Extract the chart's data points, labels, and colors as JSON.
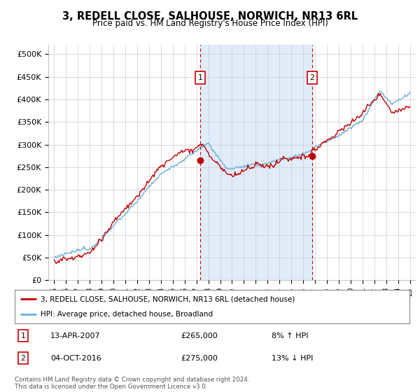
{
  "title": "3, REDELL CLOSE, SALHOUSE, NORWICH, NR13 6RL",
  "subtitle": "Price paid vs. HM Land Registry's House Price Index (HPI)",
  "legend_line1": "3, REDELL CLOSE, SALHOUSE, NORWICH, NR13 6RL (detached house)",
  "legend_line2": "HPI: Average price, detached house, Broadland",
  "annotation1_label": "1",
  "annotation1_date": "13-APR-2007",
  "annotation1_price": "£265,000",
  "annotation1_hpi": "8% ↑ HPI",
  "annotation1_year": 2007.3,
  "annotation1_value": 265000,
  "annotation2_label": "2",
  "annotation2_date": "04-OCT-2016",
  "annotation2_price": "£275,000",
  "annotation2_hpi": "13% ↓ HPI",
  "annotation2_year": 2016.75,
  "annotation2_value": 275000,
  "hpi_color": "#cce0f5",
  "hpi_line_color": "#6baed6",
  "price_color": "#c00000",
  "vline_color": "#cc0000",
  "plot_bg_color": "#ffffff",
  "grid_color": "#cccccc",
  "footer": "Contains HM Land Registry data © Crown copyright and database right 2024.\nThis data is licensed under the Open Government Licence v3.0.",
  "ylim": [
    0,
    520000
  ],
  "yticks": [
    0,
    50000,
    100000,
    150000,
    200000,
    250000,
    300000,
    350000,
    400000,
    450000,
    500000
  ],
  "ytick_labels": [
    "£0",
    "£50K",
    "£100K",
    "£150K",
    "£200K",
    "£250K",
    "£300K",
    "£350K",
    "£400K",
    "£450K",
    "£500K"
  ],
  "xlim_start": 1994.5,
  "xlim_end": 2025.5
}
